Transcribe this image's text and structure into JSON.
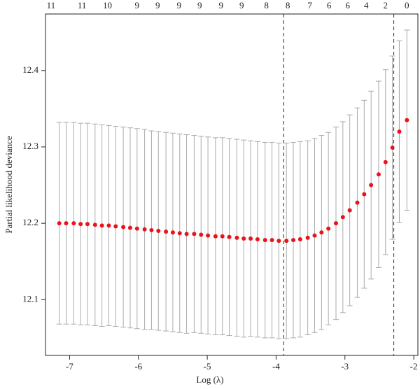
{
  "chart_data": {
    "type": "errorbar",
    "x_label": "Log (λ)",
    "y_label": "Partial likelihood deviance",
    "x": [
      -7.15,
      -7.05,
      -6.94,
      -6.84,
      -6.74,
      -6.63,
      -6.53,
      -6.43,
      -6.33,
      -6.22,
      -6.12,
      -6.02,
      -5.91,
      -5.81,
      -5.71,
      -5.6,
      -5.5,
      -5.4,
      -5.3,
      -5.19,
      -5.09,
      -4.99,
      -4.88,
      -4.78,
      -4.68,
      -4.57,
      -4.47,
      -4.37,
      -4.27,
      -4.16,
      -4.06,
      -3.96,
      -3.85,
      -3.75,
      -3.65,
      -3.54,
      -3.44,
      -3.34,
      -3.24,
      -3.13,
      -3.03,
      -2.93,
      -2.82,
      -2.72,
      -2.62,
      -2.51,
      -2.41,
      -2.31,
      -2.21,
      -2.1
    ],
    "values": [
      12.2,
      12.2,
      12.2,
      12.199,
      12.199,
      12.198,
      12.197,
      12.197,
      12.196,
      12.195,
      12.194,
      12.193,
      12.192,
      12.191,
      12.19,
      12.189,
      12.188,
      12.187,
      12.186,
      12.186,
      12.185,
      12.184,
      12.183,
      12.183,
      12.182,
      12.181,
      12.18,
      12.18,
      12.179,
      12.178,
      12.178,
      12.177,
      12.177,
      12.178,
      12.179,
      12.181,
      12.184,
      12.188,
      12.193,
      12.2,
      12.208,
      12.217,
      12.227,
      12.238,
      12.25,
      12.264,
      12.28,
      12.299,
      12.32,
      12.335
    ],
    "errors": [
      0.132,
      0.132,
      0.132,
      0.132,
      0.132,
      0.132,
      0.132,
      0.131,
      0.131,
      0.131,
      0.131,
      0.131,
      0.131,
      0.13,
      0.13,
      0.13,
      0.13,
      0.13,
      0.13,
      0.129,
      0.129,
      0.129,
      0.129,
      0.129,
      0.129,
      0.129,
      0.129,
      0.128,
      0.128,
      0.128,
      0.128,
      0.128,
      0.128,
      0.128,
      0.128,
      0.127,
      0.127,
      0.127,
      0.126,
      0.126,
      0.125,
      0.125,
      0.124,
      0.123,
      0.123,
      0.122,
      0.121,
      0.12,
      0.119,
      0.118
    ],
    "color": "#e8141b",
    "bar_color": "#aaaaaa",
    "top_labels": [
      "11",
      "11",
      "10",
      "9",
      "9",
      "9",
      "9",
      "9",
      "9",
      "8",
      "8",
      "7",
      "6",
      "6",
      "4",
      "2",
      "0"
    ],
    "top_labels_x": [
      -7.27,
      -6.82,
      -6.45,
      -6.02,
      -5.72,
      -5.41,
      -5.11,
      -4.8,
      -4.5,
      -4.14,
      -3.83,
      -3.51,
      -3.23,
      -2.96,
      -2.69,
      -2.41,
      -2.1
    ],
    "vlines": [
      -3.89,
      -2.29
    ],
    "xlim": [
      -7.35,
      -1.94
    ],
    "xticks": [
      -7,
      -6,
      -5,
      -4,
      -3,
      -2
    ],
    "ylim": [
      12.027,
      12.474
    ],
    "yticks": [
      12.1,
      12.2,
      12.3,
      12.4
    ]
  }
}
